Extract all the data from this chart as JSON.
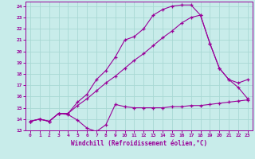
{
  "xlabel": "Windchill (Refroidissement éolien,°C)",
  "bg_color": "#c8ecea",
  "grid_color": "#a8d8d4",
  "line_color": "#990099",
  "xlim": [
    -0.5,
    23.5
  ],
  "ylim": [
    13,
    24.4
  ],
  "xticks": [
    0,
    1,
    2,
    3,
    4,
    5,
    6,
    7,
    8,
    9,
    10,
    11,
    12,
    13,
    14,
    15,
    16,
    17,
    18,
    19,
    20,
    21,
    22,
    23
  ],
  "yticks": [
    13,
    14,
    15,
    16,
    17,
    18,
    19,
    20,
    21,
    22,
    23,
    24
  ],
  "line1_x": [
    0,
    1,
    2,
    3,
    4,
    5,
    6,
    7,
    8,
    9,
    10,
    11,
    12,
    13,
    14,
    15,
    16,
    17,
    18,
    19,
    20,
    21,
    22,
    23
  ],
  "line1_y": [
    13.8,
    14.0,
    13.8,
    14.5,
    14.4,
    13.9,
    13.2,
    12.9,
    13.5,
    15.3,
    15.1,
    15.0,
    15.0,
    15.0,
    15.0,
    15.1,
    15.1,
    15.2,
    15.2,
    15.3,
    15.4,
    15.5,
    15.6,
    15.7
  ],
  "line2_x": [
    0,
    1,
    2,
    3,
    4,
    5,
    6,
    7,
    8,
    9,
    10,
    11,
    12,
    13,
    14,
    15,
    16,
    17,
    18,
    19,
    20,
    21,
    22,
    23
  ],
  "line2_y": [
    13.8,
    14.0,
    13.8,
    14.5,
    14.5,
    15.5,
    16.2,
    17.5,
    18.3,
    19.5,
    21.0,
    21.3,
    22.0,
    23.2,
    23.7,
    24.0,
    24.1,
    24.1,
    23.2,
    20.7,
    18.5,
    17.5,
    17.2,
    17.5
  ],
  "line3_x": [
    0,
    1,
    2,
    3,
    4,
    5,
    6,
    7,
    8,
    9,
    10,
    11,
    12,
    13,
    14,
    15,
    16,
    17,
    18,
    19,
    20,
    21,
    22,
    23
  ],
  "line3_y": [
    13.8,
    14.0,
    13.8,
    14.5,
    14.5,
    15.2,
    15.8,
    16.5,
    17.2,
    17.8,
    18.5,
    19.2,
    19.8,
    20.5,
    21.2,
    21.8,
    22.5,
    23.0,
    23.2,
    20.7,
    18.5,
    17.5,
    16.8,
    15.8
  ]
}
